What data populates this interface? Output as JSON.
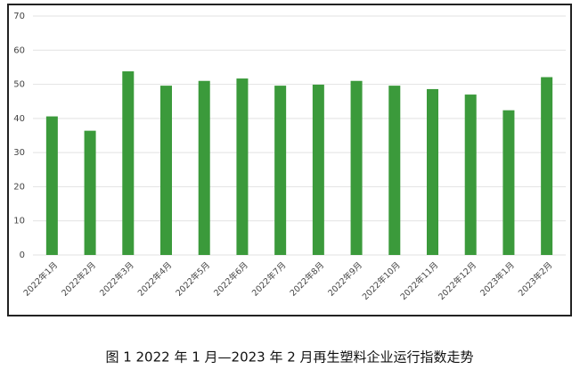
{
  "chart_data": {
    "type": "bar",
    "title": "图 1 2022 年 1 月—2023 年 2 月再生塑料企业运行指数走势",
    "categories": [
      "2022年1月",
      "2022年2月",
      "2022年3月",
      "2022年4月",
      "2022年5月",
      "2022年6月",
      "2022年7月",
      "2022年8月",
      "2022年9月",
      "2022年10月",
      "2022年11月",
      "2022年12月",
      "2023年1月",
      "2023年2月"
    ],
    "values": [
      40.6,
      36.4,
      53.8,
      49.6,
      51.0,
      51.7,
      49.6,
      49.9,
      51.0,
      49.6,
      48.6,
      47.0,
      42.4,
      52.1
    ],
    "color": "#3b9a3b",
    "ylim": [
      0,
      70
    ],
    "yticks": [
      0,
      10,
      20,
      30,
      40,
      50,
      60,
      70
    ],
    "grid": true
  }
}
